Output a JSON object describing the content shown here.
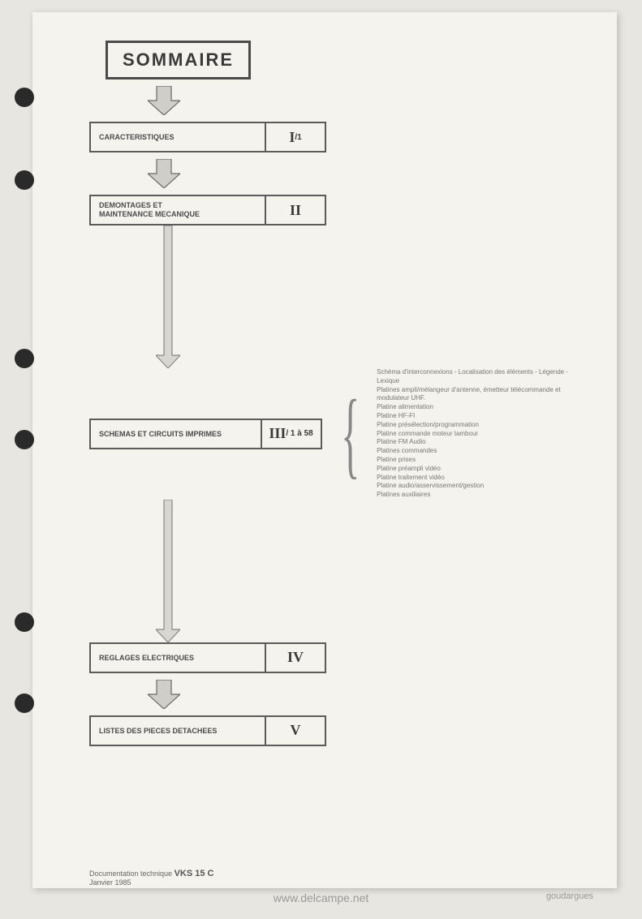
{
  "page": {
    "bg_color": "#e8e6e0",
    "paper_color": "#f5f3ee",
    "border_color": "#5a5a5a",
    "text_color": "#4a4a4a"
  },
  "holes": [
    108,
    210,
    430,
    530,
    755,
    855
  ],
  "title": "SOMMAIRE",
  "arrows": {
    "short": {
      "stem_w": 18,
      "stem_h": 18,
      "head_w": 40,
      "head_h": 18,
      "fill": "#d0cec8",
      "stroke": "#6a6a66"
    },
    "long": {
      "stem_w": 10,
      "fill": "#d8d6d0",
      "stroke": "#888",
      "head_w": 30,
      "head_h": 16
    }
  },
  "sections": [
    {
      "label": "CARACTERISTIQUES",
      "num": "I",
      "sub": "/1"
    },
    {
      "label": "DEMONTAGES ET\nMAINTENANCE MECANIQUE",
      "num": "II",
      "sub": ""
    },
    {
      "label": "SCHEMAS ET CIRCUITS IMPRIMES",
      "num": "III",
      "sub": "/ 1 à 58"
    },
    {
      "label": "REGLAGES ELECTRIQUES",
      "num": "IV",
      "sub": ""
    },
    {
      "label": "LISTES DES PIECES DETACHEES",
      "num": "V",
      "sub": ""
    }
  ],
  "arrow_heights": {
    "after_title": 36,
    "after_s0": 36,
    "after_s1": 176,
    "after_s2": 176,
    "after_s3": 36
  },
  "details": [
    "Schéma d'interconnexions - Localisation des éléments - Légende -",
    "Lexique",
    "Platines ampli/mélangeur d'antenne, émetteur télécommande et",
    "modulateur UHF.",
    "Platine alimentation",
    "Platine HF-FI",
    "Platine présélection/programmation",
    "Platine commande moteur tambour",
    "Platine FM Audio",
    "Platines commandes",
    "Platine prises",
    "Platine préampli vidéo",
    "Platine traitement vidéo",
    "Platine audio/asservissement/gestion",
    "Platines auxiliaires"
  ],
  "footer": {
    "line1_prefix": "Documentation technique ",
    "code": "VKS 15 C",
    "line2": "Janvier 1985"
  },
  "watermark": {
    "main": "www.delcampe.net",
    "attr": "goudargues"
  }
}
